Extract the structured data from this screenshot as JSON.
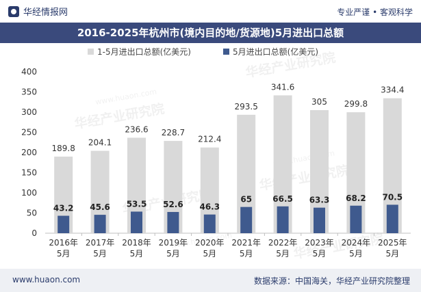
{
  "header": {
    "brand": "华经情报网",
    "tagline": "专业严谨 • 客观科学",
    "logo_icon": "huajing-logo-icon"
  },
  "title": "2016-2025年杭州市(境内目的地/货源地)5月进出口总额",
  "footer": {
    "website": "www.huaon.com",
    "source": "数据来源：中国海关，华经产业研究院整理"
  },
  "watermark": {
    "text": "华经产业研究院",
    "url": "www.huaon.com"
  },
  "colors": {
    "title_bar": "#3a4a7c",
    "series_total": "#d9d9d9",
    "series_may": "#3f5a8e",
    "text": "#2a3b6b"
  },
  "chart_data": {
    "type": "bar",
    "categories": [
      "2016年\n5月",
      "2017年\n5月",
      "2018年\n5月",
      "2019年\n5月",
      "2020年\n5月",
      "2021年\n5月",
      "2022年\n5月",
      "2023年\n5月",
      "2024年\n5月",
      "2025年\n5月"
    ],
    "series": [
      {
        "name": "1-5月进出口总额(亿美元)",
        "values": [
          189.8,
          204.1,
          236.6,
          228.7,
          212.4,
          293.5,
          341.6,
          305,
          299.8,
          334.4
        ],
        "labels": [
          "189.8",
          "204.1",
          "236.6",
          "228.7",
          "212.4",
          "293.5",
          "341.6",
          "305",
          "299.8",
          "334.4"
        ]
      },
      {
        "name": "5月进出口总额(亿美元)",
        "values": [
          43.2,
          45.6,
          53.5,
          52.6,
          46.3,
          65,
          66.5,
          63.3,
          68.2,
          70.5
        ],
        "labels": [
          "43.2",
          "45.6",
          "53.5",
          "52.6",
          "46.3",
          "65",
          "66.5",
          "63.3",
          "68.2",
          "70.5"
        ]
      }
    ],
    "yticks": [
      "0",
      "50",
      "100",
      "150",
      "200",
      "250",
      "300",
      "350",
      "400"
    ],
    "ylim": [
      0,
      400
    ],
    "legend_position": "top",
    "grid": false
  }
}
